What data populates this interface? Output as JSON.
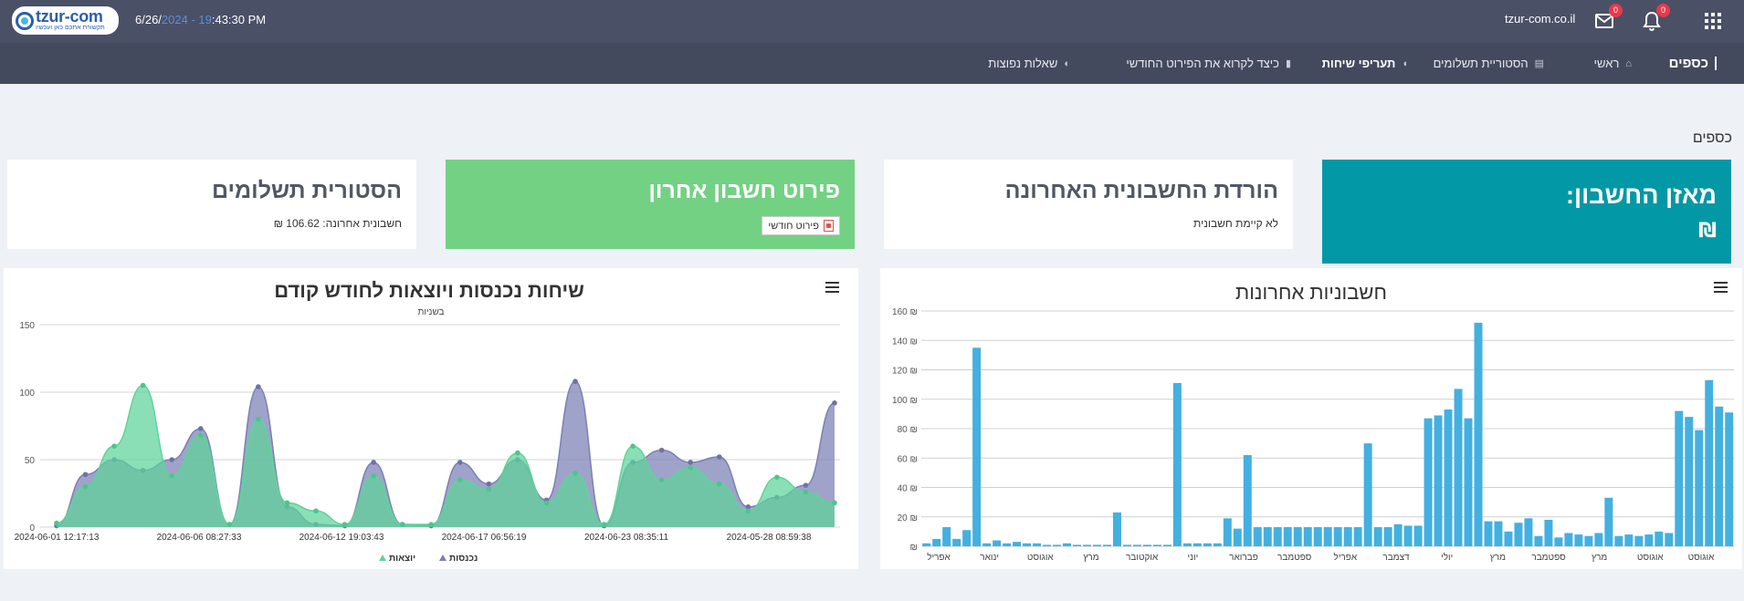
{
  "header": {
    "logo": {
      "name": "tzur-com",
      "tagline": "תקשורת אתכם כאן ועכשיו"
    },
    "time": {
      "date_prefix": "6/26/",
      "date_dim": "2024 - 19",
      "time_rest": ":43:30 PM"
    },
    "domain": "tzur-com.co.il",
    "mail_badge": "0",
    "bell_badge": "0",
    "icons": [
      "mail-icon",
      "bell-icon",
      "apps-grid-icon"
    ]
  },
  "nav": {
    "brand": "כספים",
    "items": [
      {
        "label": "ראשי",
        "icon": "home-icon"
      },
      {
        "label": "הסטוריית תשלומים",
        "icon": "receipt-icon"
      },
      {
        "label": "תעריפי שיחות",
        "icon": "headset-icon",
        "bold": true
      },
      {
        "label": "כיצד לקרוא את הפירוט החודשי",
        "icon": "bar-chart-icon"
      },
      {
        "label": "שאלות נפוצות",
        "icon": "question-icon"
      }
    ]
  },
  "page": {
    "heading": "כספים"
  },
  "cards": {
    "balance": {
      "title": "מאזן החשבון:",
      "currency": "₪"
    },
    "download": {
      "title": "הורדת החשבונית האחרונה",
      "sub": "לא קיימת חשבונית"
    },
    "last_bill": {
      "title": "פירוט חשבון אחרון",
      "button": "פירוט חודשי"
    },
    "history": {
      "title": "הסטורית תשלומים",
      "sub": "חשבונית אחרונה: 106.62 ₪"
    }
  },
  "colors": {
    "teal": "#0398a6",
    "green": "#73d184",
    "bar": "#43b0e0",
    "incoming": "#7b7fb4",
    "outgoing": "#5ed39a"
  },
  "chart_data": [
    {
      "type": "bar",
      "title": "חשבוניות אחרונות",
      "ylim": [
        0,
        160
      ],
      "ytick_labels": [
        "₪",
        "20 ₪",
        "40 ₪",
        "60 ₪",
        "80 ₪",
        "100 ₪",
        "120 ₪",
        "140 ₪",
        "160 ₪"
      ],
      "x_tick_labels": [
        "אוגוסט",
        "אוגוסט",
        "מרץ",
        "ספטמבר",
        "מרץ",
        "יולי",
        "דצמבר",
        "אפריל",
        "ספטמבר",
        "פברואר",
        "יוני",
        "אוקטובר",
        "מרץ",
        "אוגוסט",
        "ינואר",
        "אפריל"
      ],
      "values": [
        91,
        95,
        113,
        79,
        88,
        92,
        9,
        10,
        8,
        7,
        8,
        7,
        33,
        9,
        7,
        8,
        9,
        6,
        18,
        7,
        19,
        16,
        10,
        17,
        17,
        152,
        87,
        107,
        93,
        89,
        87,
        14,
        14,
        15,
        13,
        13,
        70,
        13,
        13,
        13,
        13,
        13,
        13,
        13,
        13,
        13,
        13,
        13,
        62,
        12,
        19,
        2,
        2,
        2,
        2,
        111,
        1,
        1,
        1,
        1,
        1,
        23,
        1,
        1,
        1,
        1,
        2,
        1,
        1,
        2,
        2,
        3,
        2,
        4,
        2,
        135,
        11,
        5,
        13,
        5,
        2
      ]
    },
    {
      "type": "area",
      "title": "שיחות נכנסות ויוצאות לחודש קודם",
      "ylabel": "בשניות",
      "ylim": [
        0,
        150
      ],
      "yticks": [
        0,
        50,
        100,
        150
      ],
      "x_tick_labels": [
        "2024-06-01 12:17:13",
        "2024-06-06 08:27:33",
        "2024-06-12 19:03:43",
        "2024-06-17 06:56:19",
        "2024-06-23 08:35:11",
        "2024-05-28 08:59:38"
      ],
      "series": [
        {
          "name": "נכנסות",
          "values": [
            1,
            39,
            50,
            42,
            50,
            73,
            2,
            104,
            15,
            2,
            1,
            48,
            2,
            1,
            48,
            32,
            50,
            20,
            108,
            1,
            48,
            57,
            48,
            52,
            15,
            22,
            31,
            92
          ]
        },
        {
          "name": "יוצאות",
          "values": [
            3,
            30,
            60,
            105,
            38,
            68,
            2,
            80,
            18,
            12,
            2,
            38,
            2,
            2,
            35,
            28,
            55,
            18,
            40,
            2,
            60,
            35,
            44,
            32,
            12,
            37,
            26,
            18
          ]
        }
      ],
      "legend": "bottom"
    }
  ]
}
